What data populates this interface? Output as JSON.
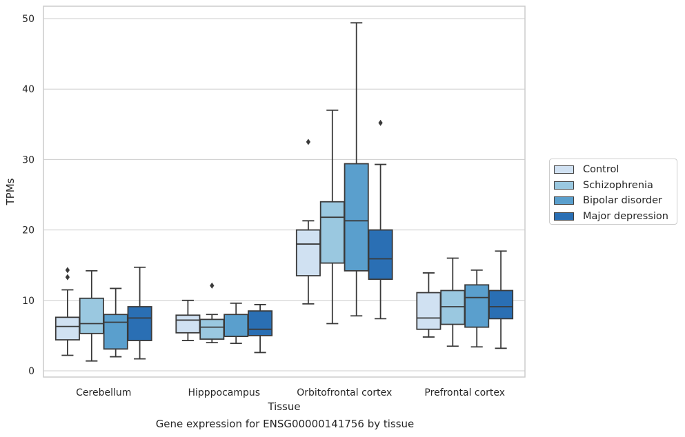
{
  "chart_data": {
    "type": "boxplot",
    "xlabel": "Tissue",
    "ylabel": "TPMs",
    "ylim": [
      -1,
      52
    ],
    "yticks": [
      0,
      10,
      20,
      30,
      40,
      50
    ],
    "grid": "horizontal",
    "legend_position": "right",
    "categories": [
      "Cerebellum",
      "Hipppocampus",
      "Orbitofrontal cortex",
      "Prefrontal cortex"
    ],
    "series": [
      {
        "name": "Control",
        "color": "#d0e1f2",
        "boxes": [
          {
            "whisker_low": 2.2,
            "q1": 4.4,
            "median": 6.3,
            "q3": 7.6,
            "whisker_high": 11.5,
            "outliers": [
              13.3,
              14.3
            ]
          },
          {
            "whisker_low": 4.3,
            "q1": 5.4,
            "median": 7.2,
            "q3": 7.9,
            "whisker_high": 10.0,
            "outliers": []
          },
          {
            "whisker_low": 9.5,
            "q1": 13.5,
            "median": 18.0,
            "q3": 20.0,
            "whisker_high": 21.3,
            "outliers": [
              32.5
            ]
          },
          {
            "whisker_low": 4.8,
            "q1": 5.9,
            "median": 7.5,
            "q3": 11.1,
            "whisker_high": 13.9,
            "outliers": []
          }
        ]
      },
      {
        "name": "Schizophrenia",
        "color": "#9ac8e0",
        "boxes": [
          {
            "whisker_low": 1.4,
            "q1": 5.3,
            "median": 6.7,
            "q3": 10.3,
            "whisker_high": 14.2,
            "outliers": []
          },
          {
            "whisker_low": 4.0,
            "q1": 4.5,
            "median": 6.2,
            "q3": 7.3,
            "whisker_high": 8.0,
            "outliers": [
              12.1
            ]
          },
          {
            "whisker_low": 6.7,
            "q1": 15.3,
            "median": 21.8,
            "q3": 24.0,
            "whisker_high": 37.0,
            "outliers": []
          },
          {
            "whisker_low": 3.5,
            "q1": 6.6,
            "median": 9.1,
            "q3": 11.4,
            "whisker_high": 16.0,
            "outliers": []
          }
        ]
      },
      {
        "name": "Bipolar disorder",
        "color": "#5a9fcd",
        "boxes": [
          {
            "whisker_low": 2.0,
            "q1": 3.1,
            "median": 6.9,
            "q3": 8.0,
            "whisker_high": 11.7,
            "outliers": []
          },
          {
            "whisker_low": 3.9,
            "q1": 4.9,
            "median": 4.9,
            "q3": 8.0,
            "whisker_high": 9.6,
            "outliers": []
          },
          {
            "whisker_low": 7.8,
            "q1": 14.2,
            "median": 21.3,
            "q3": 29.4,
            "whisker_high": 49.4,
            "outliers": []
          },
          {
            "whisker_low": 3.4,
            "q1": 6.2,
            "median": 10.4,
            "q3": 12.2,
            "whisker_high": 14.3,
            "outliers": []
          }
        ]
      },
      {
        "name": "Major depression",
        "color": "#2a6fb4",
        "boxes": [
          {
            "whisker_low": 1.7,
            "q1": 4.3,
            "median": 7.5,
            "q3": 9.1,
            "whisker_high": 14.7,
            "outliers": []
          },
          {
            "whisker_low": 2.6,
            "q1": 5.0,
            "median": 5.9,
            "q3": 8.5,
            "whisker_high": 9.4,
            "outliers": []
          },
          {
            "whisker_low": 7.4,
            "q1": 13.0,
            "median": 15.9,
            "q3": 20.0,
            "whisker_high": 29.3,
            "outliers": [
              35.2
            ]
          },
          {
            "whisker_low": 3.2,
            "q1": 7.4,
            "median": 9.1,
            "q3": 11.4,
            "whisker_high": 17.0,
            "outliers": []
          }
        ]
      }
    ]
  },
  "caption": "Gene expression for ENSG00000141756 by tissue"
}
